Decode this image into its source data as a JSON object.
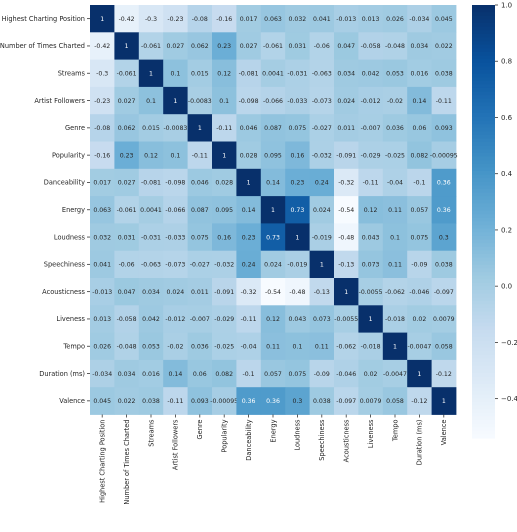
{
  "chart_data": {
    "type": "heatmap",
    "title": "",
    "labels": [
      "Highest Charting Position",
      "Number of Times Charted",
      "Streams",
      "Artist Followers",
      "Genre",
      "Popularity",
      "Danceability",
      "Energy",
      "Loudness",
      "Speechiness",
      "Acousticness",
      "Liveness",
      "Tempo",
      "Duration (ms)",
      "Valence"
    ],
    "values": [
      [
        1,
        -0.42,
        -0.3,
        -0.23,
        -0.08,
        -0.16,
        0.017,
        0.063,
        0.032,
        0.041,
        -0.013,
        0.013,
        0.026,
        -0.034,
        0.045
      ],
      [
        -0.42,
        1,
        -0.061,
        0.027,
        0.062,
        0.23,
        0.027,
        -0.061,
        0.031,
        -0.06,
        0.047,
        -0.058,
        -0.048,
        0.034,
        0.022
      ],
      [
        -0.3,
        -0.061,
        1,
        0.1,
        0.015,
        0.12,
        -0.081,
        0.0041,
        -0.031,
        -0.063,
        0.034,
        0.042,
        0.053,
        0.016,
        0.038
      ],
      [
        -0.23,
        0.027,
        0.1,
        1,
        -0.0083,
        0.1,
        -0.098,
        -0.066,
        -0.033,
        -0.073,
        0.024,
        -0.012,
        -0.02,
        0.14,
        -0.11
      ],
      [
        -0.08,
        0.062,
        0.015,
        -0.0083,
        1,
        -0.11,
        0.046,
        0.087,
        0.075,
        -0.027,
        0.011,
        -0.007,
        0.036,
        0.06,
        0.093
      ],
      [
        -0.16,
        0.23,
        0.12,
        0.1,
        -0.11,
        1,
        0.028,
        0.095,
        0.16,
        -0.032,
        -0.091,
        -0.029,
        -0.025,
        0.082,
        -0.00095
      ],
      [
        0.017,
        0.027,
        -0.081,
        -0.098,
        0.046,
        0.028,
        1,
        0.14,
        0.23,
        0.24,
        -0.32,
        -0.11,
        -0.04,
        -0.1,
        0.36
      ],
      [
        0.063,
        -0.061,
        0.0041,
        -0.066,
        0.087,
        0.095,
        0.14,
        1,
        0.73,
        0.024,
        -0.54,
        0.12,
        0.11,
        0.057,
        0.36
      ],
      [
        0.032,
        0.031,
        -0.031,
        -0.033,
        0.075,
        0.16,
        0.23,
        0.73,
        1,
        -0.019,
        -0.48,
        0.043,
        0.1,
        0.075,
        0.3
      ],
      [
        0.041,
        -0.06,
        -0.063,
        -0.073,
        -0.027,
        -0.032,
        0.24,
        0.024,
        -0.019,
        1,
        -0.13,
        0.073,
        0.11,
        -0.09,
        0.038
      ],
      [
        -0.013,
        0.047,
        0.034,
        0.024,
        0.011,
        -0.091,
        -0.32,
        -0.54,
        -0.48,
        -0.13,
        1,
        -0.0055,
        -0.062,
        -0.046,
        -0.097
      ],
      [
        0.013,
        -0.058,
        0.042,
        -0.012,
        -0.007,
        -0.029,
        -0.11,
        0.12,
        0.043,
        0.073,
        -0.0055,
        1,
        -0.018,
        0.02,
        0.0079
      ],
      [
        0.026,
        -0.048,
        0.053,
        -0.02,
        0.036,
        -0.025,
        -0.04,
        0.11,
        0.1,
        0.11,
        -0.062,
        -0.018,
        1,
        -0.0047,
        0.058
      ],
      [
        -0.034,
        0.034,
        0.016,
        0.14,
        0.06,
        0.082,
        -0.1,
        0.057,
        0.075,
        -0.09,
        -0.046,
        0.02,
        -0.0047,
        1,
        -0.12
      ],
      [
        0.045,
        0.022,
        0.038,
        -0.11,
        0.093,
        -0.00095,
        0.36,
        0.36,
        0.3,
        0.038,
        -0.097,
        0.0079,
        0.058,
        -0.12,
        1
      ]
    ],
    "colorbar": {
      "min": -0.54,
      "max": 1.0,
      "ticks": [
        -0.4,
        -0.2,
        0.0,
        0.2,
        0.4,
        0.6,
        0.8,
        1.0
      ],
      "colormap": "Blues",
      "color_low": "#f7fbff",
      "color_high": "#08306b"
    },
    "grid": false,
    "annotated": true
  }
}
